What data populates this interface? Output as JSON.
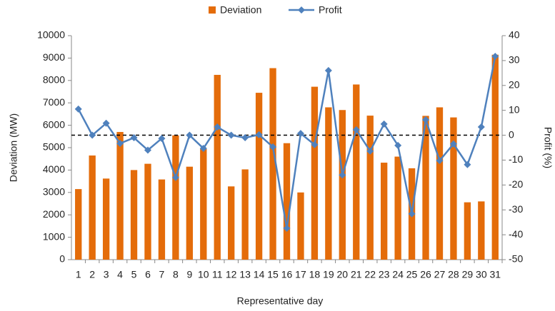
{
  "chart_data": {
    "type": "bar_line",
    "categories": [
      "1",
      "2",
      "3",
      "4",
      "5",
      "6",
      "7",
      "8",
      "9",
      "10",
      "11",
      "12",
      "13",
      "14",
      "15",
      "16",
      "17",
      "18",
      "19",
      "20",
      "21",
      "22",
      "23",
      "24",
      "25",
      "26",
      "27",
      "28",
      "29",
      "30",
      "31"
    ],
    "series": [
      {
        "name": "Deviation",
        "type": "bar",
        "color": "#E46C0A",
        "values": [
          3150,
          4650,
          3620,
          5700,
          4000,
          4280,
          3580,
          5550,
          4150,
          4950,
          8250,
          3270,
          4030,
          7450,
          8550,
          5200,
          3000,
          7720,
          6800,
          6680,
          7820,
          6430,
          4330,
          4600,
          4080,
          6420,
          6800,
          6350,
          2560,
          2600,
          9150
        ]
      },
      {
        "name": "Profit",
        "type": "line",
        "axis": "y2",
        "color": "#4F81BD",
        "values": [
          10.5,
          0,
          4.8,
          -3.3,
          -1,
          -6,
          -1.3,
          -17,
          0,
          -5.3,
          3.3,
          0,
          -1,
          0.2,
          -4.7,
          -37.4,
          0.7,
          -3.8,
          26,
          -16,
          2.2,
          -6.4,
          4.5,
          -4.1,
          -31.6,
          6.2,
          -10.2,
          -3.5,
          -11.8,
          3.3,
          31.7
        ]
      }
    ],
    "xlabel": "Representative day",
    "ylabel": "Deviation (MW)",
    "y2label": "Profit (%)",
    "ylim": [
      0,
      10000
    ],
    "yticks": [
      0,
      1000,
      2000,
      3000,
      4000,
      5000,
      6000,
      7000,
      8000,
      9000,
      10000
    ],
    "y2lim": [
      -50,
      40
    ],
    "y2ticks": [
      -50,
      -40,
      -30,
      -20,
      -10,
      0,
      10,
      20,
      30,
      40
    ],
    "y2_reference_line": 0,
    "legend": "top"
  }
}
